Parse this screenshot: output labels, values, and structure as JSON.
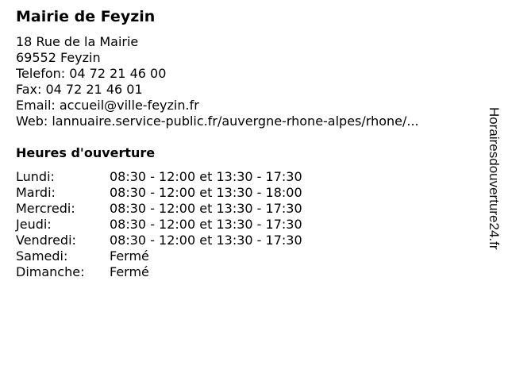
{
  "title": "Mairie de Feyzin",
  "address": {
    "street": "18 Rue de la Mairie",
    "city": "69552 Feyzin"
  },
  "contact": {
    "phone": "Telefon: 04 72 21 46 00",
    "fax": "Fax: 04 72 21 46 01",
    "email": "Email: accueil@ville-feyzin.fr",
    "web": "Web: lannuaire.service-public.fr/auvergne-rhone-alpes/rhone/..."
  },
  "hours_heading": "Heures d'ouverture",
  "hours": [
    {
      "day": "Lundi:",
      "time": "08:30 - 12:00 et 13:30 - 17:30"
    },
    {
      "day": "Mardi:",
      "time": "08:30 - 12:00 et 13:30 - 18:00"
    },
    {
      "day": "Mercredi:",
      "time": "08:30 - 12:00 et 13:30 - 17:30"
    },
    {
      "day": "Jeudi:",
      "time": "08:30 - 12:00 et 13:30 - 17:30"
    },
    {
      "day": "Vendredi:",
      "time": "08:30 - 12:00 et 13:30 - 17:30"
    },
    {
      "day": "Samedi:",
      "time": "Fermé"
    },
    {
      "day": "Dimanche:",
      "time": "Fermé"
    }
  ],
  "watermark": "Horairesdouverture24.fr"
}
